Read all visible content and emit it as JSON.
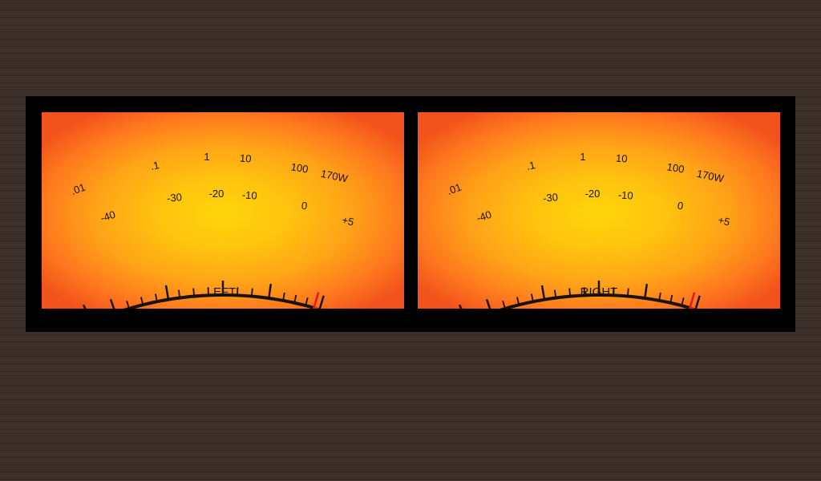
{
  "meters": [
    {
      "channel_label": "LEFT",
      "power_scale": [
        ".01",
        ".1",
        "1",
        "10",
        "100"
      ],
      "power_max": "170W",
      "db_scale": [
        "-40",
        "-30",
        "-20",
        "-10",
        "0"
      ],
      "db_max": "+5"
    },
    {
      "channel_label": "RIGHT",
      "power_scale": [
        ".01",
        ".1",
        "1",
        "10",
        "100"
      ],
      "power_max": "170W",
      "db_scale": [
        "-40",
        "-30",
        "-20",
        "-10",
        "0"
      ],
      "db_max": "+5"
    }
  ],
  "colors": {
    "scale_black": "#1a1208",
    "scale_red": "#e01a1a",
    "face_center": "#ffd60a",
    "face_edge": "#f2531c",
    "bezel": "#000000",
    "panel": "#3a2c26"
  }
}
